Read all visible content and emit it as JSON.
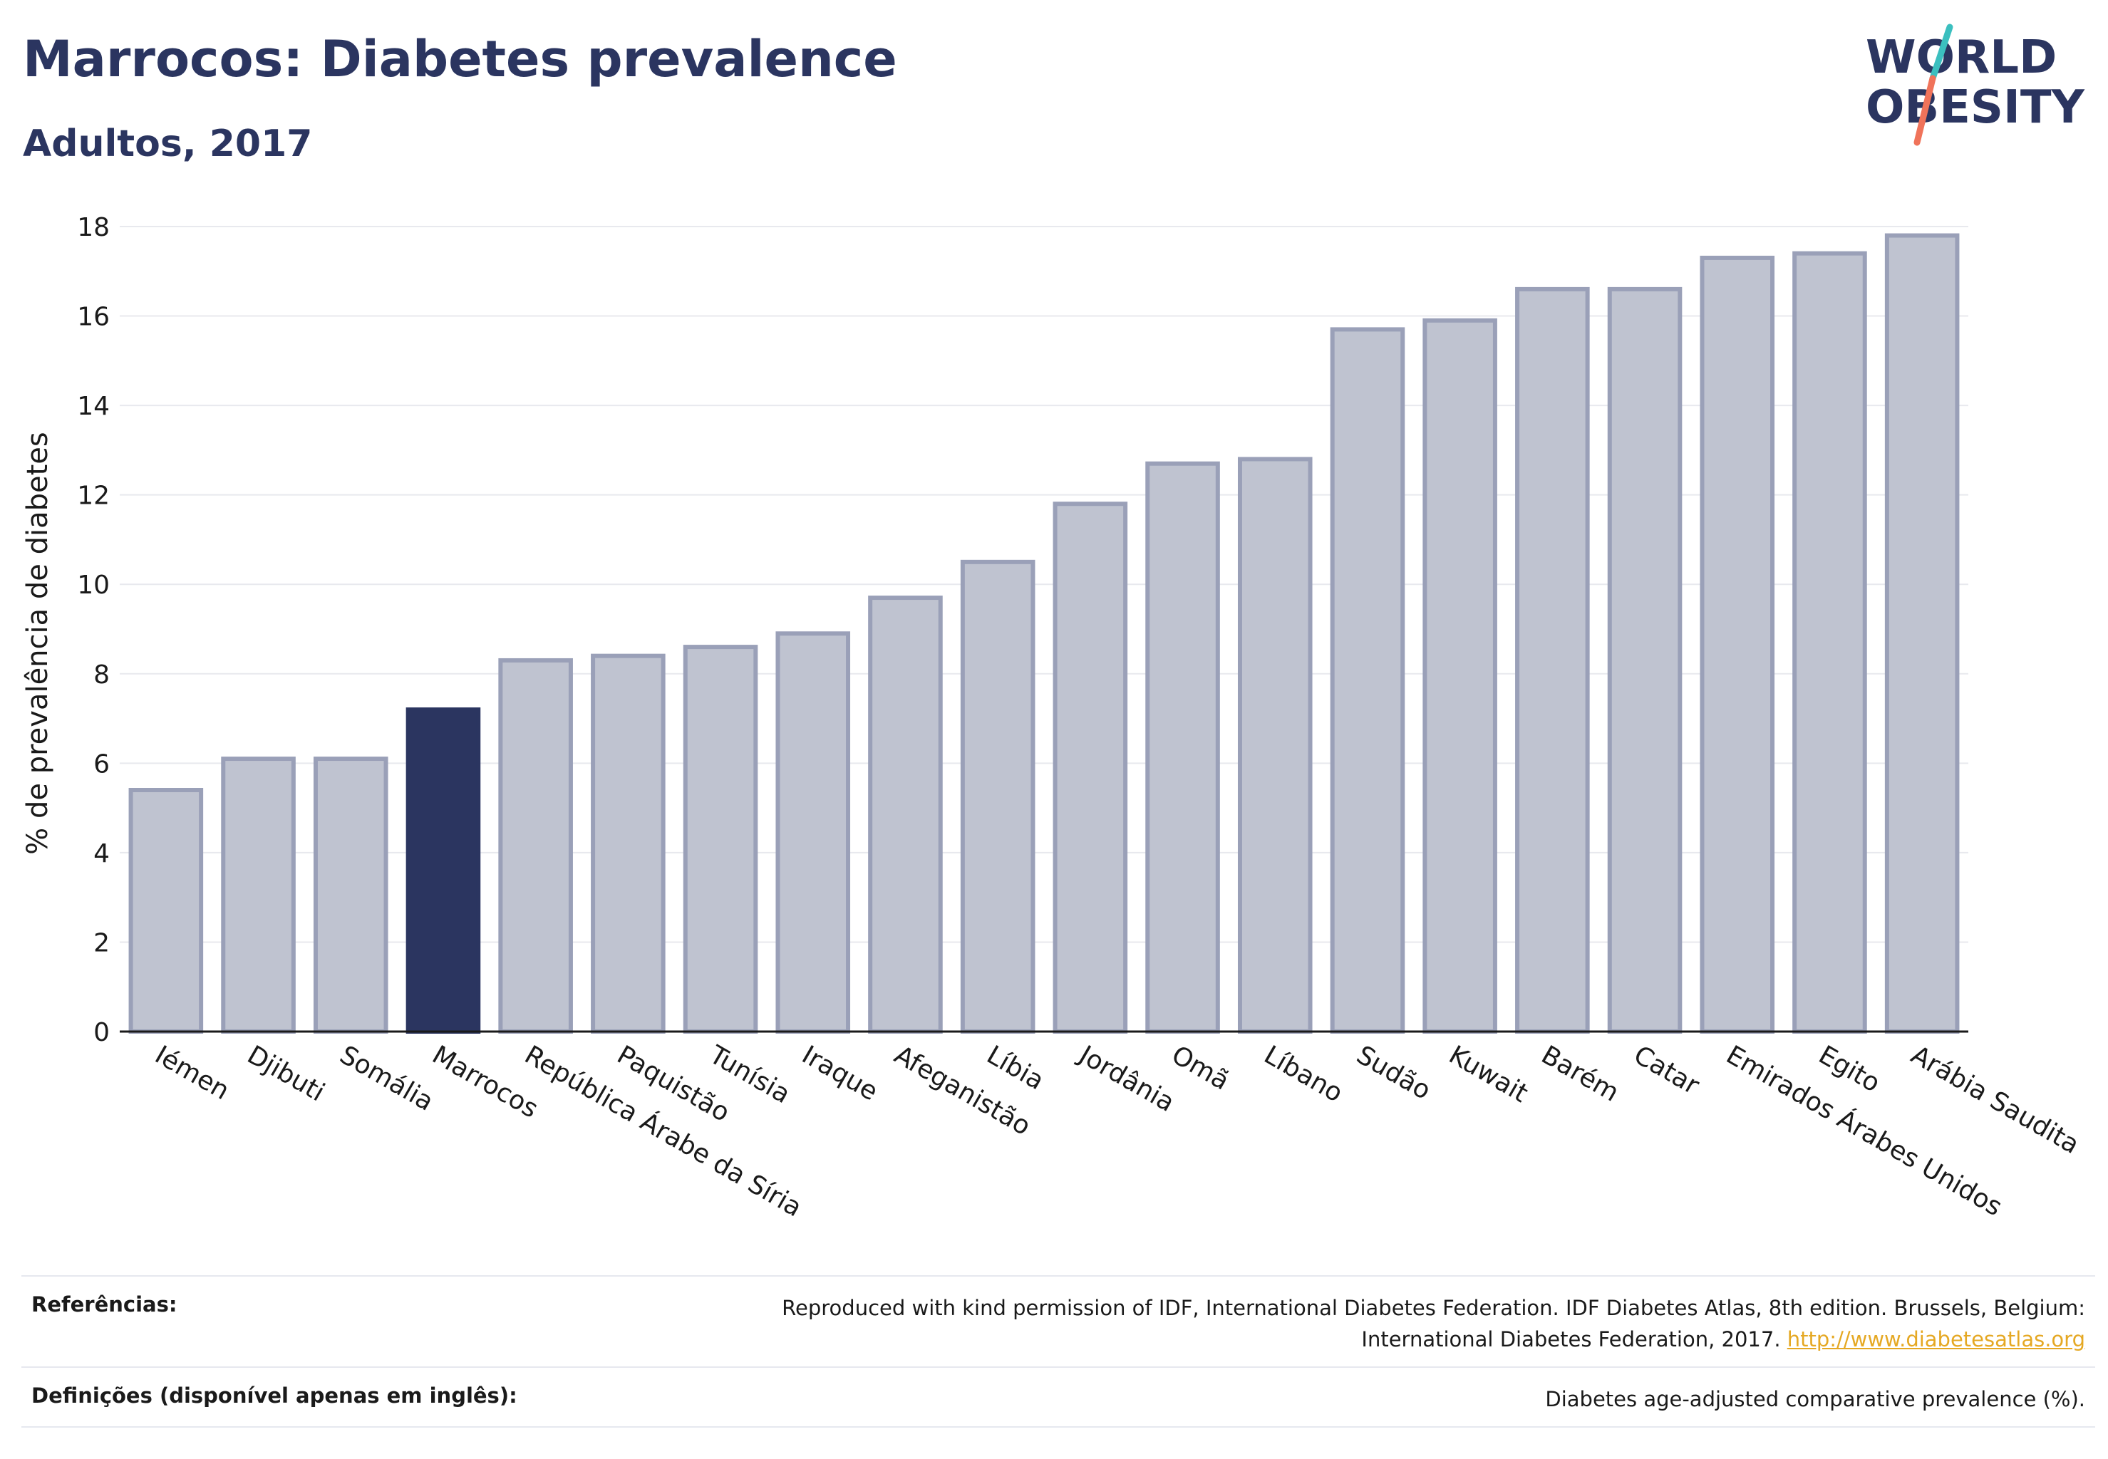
{
  "title": "Marrocos: Diabetes prevalence",
  "subtitle": "Adultos, 2017",
  "logo": {
    "line1": "WORLD",
    "line2": "OBESITY",
    "colors": {
      "text": "#2b3560",
      "slash_teal": "#3bbfbf",
      "slash_coral": "#f0735a"
    }
  },
  "colors": {
    "bar": "#bfc3d0",
    "bar_stroke": "#9aa0b8",
    "highlight": "#2b3560",
    "grid": "#e8e9ee",
    "axis": "#1a1a1a"
  },
  "chart_data": {
    "type": "bar",
    "ylabel": "% de prevalência de diabetes",
    "xlabel": "",
    "ylim": [
      0,
      18
    ],
    "yticks": [
      0,
      2,
      4,
      6,
      8,
      10,
      12,
      14,
      16,
      18
    ],
    "grid": true,
    "highlight": "Marrocos",
    "categories": [
      "Iémen",
      "Djibuti",
      "Somália",
      "Marrocos",
      "República Árabe da Síria",
      "Paquistão",
      "Tunísia",
      "Iraque",
      "Afeganistão",
      "Líbia",
      "Jordânia",
      "Omã",
      "Líbano",
      "Sudão",
      "Kuwait",
      "Barém",
      "Catar",
      "Emirados Árabes Unidos",
      "Egito",
      "Arábia Saudita"
    ],
    "values": [
      5.4,
      6.1,
      6.1,
      7.2,
      8.3,
      8.4,
      8.6,
      8.9,
      9.7,
      10.5,
      11.8,
      12.7,
      12.8,
      15.7,
      15.9,
      16.6,
      16.6,
      17.3,
      17.4,
      17.8
    ]
  },
  "footer": {
    "references_label": "Referências:",
    "references_text": "Reproduced with kind permission of IDF, International Diabetes Federation. IDF Diabetes Atlas, 8th edition. Brussels, Belgium:",
    "references_text2": "International Diabetes Federation, 2017.",
    "references_link": "http://www.diabetesatlas.org",
    "definitions_label": "Definições (disponível apenas em inglês):",
    "definitions_text": "Diabetes age-adjusted comparative prevalence (%)."
  }
}
